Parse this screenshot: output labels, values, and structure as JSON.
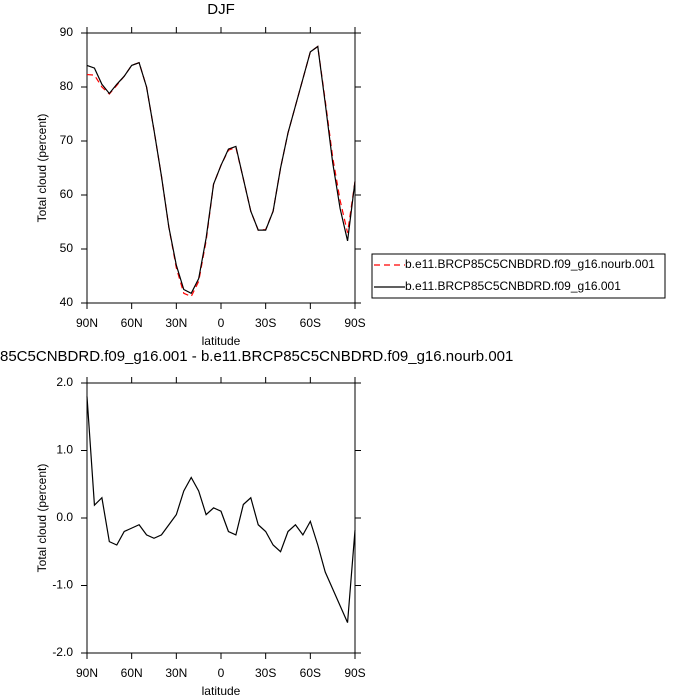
{
  "chart_data": [
    {
      "type": "line",
      "title": "DJF",
      "x_label": "latitude",
      "y_label": "Total cloud (percent)",
      "x": [
        90,
        85,
        80,
        75,
        70,
        65,
        60,
        55,
        50,
        45,
        40,
        35,
        30,
        25,
        20,
        15,
        10,
        5,
        0,
        -5,
        -10,
        -15,
        -20,
        -25,
        -30,
        -35,
        -40,
        -45,
        -50,
        -55,
        -60,
        -65,
        -70,
        -75,
        -80,
        -85,
        -90
      ],
      "xlim": [
        90,
        -90
      ],
      "xticks": [
        {
          "value": 90,
          "label": "90N"
        },
        {
          "value": 60,
          "label": "60N"
        },
        {
          "value": 30,
          "label": "30N"
        },
        0,
        {
          "value": -30,
          "label": "30S"
        },
        {
          "value": -60,
          "label": "60S"
        },
        {
          "value": -90,
          "label": "90S"
        }
      ],
      "ylim": [
        40,
        90
      ],
      "yticks": [
        40,
        50,
        60,
        70,
        80,
        90
      ],
      "legend": "right",
      "series": [
        {
          "name": "b.e11.BRCP85C5CNBDRD.f09_g16.nourb.001",
          "color": "#ff0000",
          "dash": "dashed",
          "values": [
            82.3,
            82.2,
            80,
            78.7,
            80.3,
            82,
            84,
            84.5,
            80,
            72,
            63.5,
            54,
            46.5,
            41.8,
            41.2,
            44,
            51.5,
            62,
            65.5,
            68.3,
            68.8,
            63,
            57,
            53.5,
            53.6,
            57,
            65,
            71.5,
            76.5,
            81.5,
            86.5,
            87.5,
            77.5,
            67,
            59,
            53,
            62.5
          ]
        },
        {
          "name": "b.e11.BRCP85C5CNBDRD.f09_g16.001",
          "color": "#000000",
          "dash": "solid",
          "values": [
            84,
            83.5,
            80.5,
            78.8,
            80.5,
            82,
            84,
            84.5,
            80,
            72,
            63.5,
            54,
            47,
            42.5,
            41.8,
            44.5,
            52,
            62,
            65.5,
            68.5,
            69,
            63,
            57,
            53.5,
            53.5,
            57,
            65,
            71.5,
            76.5,
            81.5,
            86.5,
            87.5,
            77,
            66,
            57.5,
            51.5,
            62.5
          ]
        }
      ]
    },
    {
      "type": "line",
      "title": "85C5CNBDRD.f09_g16.001 - b.e11.BRCP85C5CNBDRD.f09_g16.nourb.001",
      "x_label": "latitude",
      "y_label": "Total cloud (percent)",
      "x": [
        90,
        85,
        80,
        75,
        70,
        65,
        60,
        55,
        50,
        45,
        40,
        35,
        30,
        25,
        20,
        15,
        10,
        5,
        0,
        -5,
        -10,
        -15,
        -20,
        -25,
        -30,
        -35,
        -40,
        -45,
        -50,
        -55,
        -60,
        -65,
        -70,
        -75,
        -80,
        -85,
        -90
      ],
      "xlim": [
        90,
        -90
      ],
      "xticks": [
        {
          "value": 90,
          "label": "90N"
        },
        {
          "value": 60,
          "label": "60N"
        },
        {
          "value": 30,
          "label": "30N"
        },
        0,
        {
          "value": -30,
          "label": "30S"
        },
        {
          "value": -60,
          "label": "60S"
        },
        {
          "value": -90,
          "label": "90S"
        }
      ],
      "ylim": [
        -2,
        2
      ],
      "yticks": [
        {
          "value": -2,
          "label": "-2.0"
        },
        {
          "value": -1,
          "label": "-1.0"
        },
        {
          "value": 0,
          "label": "0.0"
        },
        {
          "value": 1,
          "label": "1.0"
        },
        {
          "value": 2,
          "label": "2.0"
        }
      ],
      "series": [
        {
          "color": "#000000",
          "dash": "solid",
          "values": [
            1.8,
            0.19,
            0.3,
            -0.35,
            -0.4,
            -0.2,
            -0.15,
            -0.1,
            -0.25,
            -0.3,
            -0.25,
            -0.1,
            0.05,
            0.4,
            0.6,
            0.4,
            0.05,
            0.15,
            0.1,
            -0.2,
            -0.25,
            0.2,
            0.3,
            -0.1,
            -0.2,
            -0.4,
            -0.5,
            -0.2,
            -0.1,
            -0.25,
            -0.05,
            -0.4,
            -0.8,
            -1.05,
            -1.3,
            -1.55,
            -0.18
          ]
        }
      ]
    }
  ]
}
